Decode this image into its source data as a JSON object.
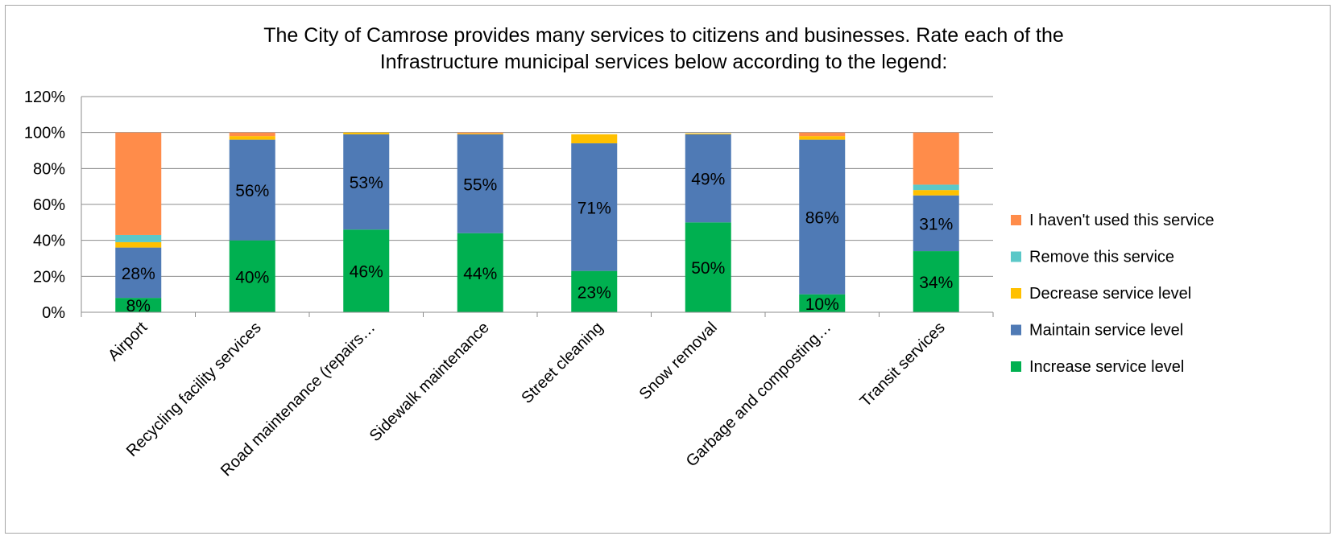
{
  "chart_data": {
    "type": "bar",
    "stacked": true,
    "title": "The City of Camrose provides many services to citizens and businesses.  Rate each of the Infrastructure municipal services below according to the legend:",
    "title_lines": [
      "The City of Camrose provides many services to citizens and businesses.  Rate each of the",
      "Infrastructure municipal services below according to the legend:"
    ],
    "xlabel": "",
    "ylabel": "",
    "ylim": [
      0,
      120
    ],
    "yticks": [
      "0%",
      "20%",
      "40%",
      "60%",
      "80%",
      "100%",
      "120%"
    ],
    "grid": true,
    "legend_position": "right",
    "categories": [
      "Airport",
      "Recycling facility services",
      "Road maintenance (repairs…",
      "Sidewalk maintenance",
      "Street cleaning",
      "Snow removal",
      "Garbage and composting…",
      "Transit services"
    ],
    "series": [
      {
        "name": "Increase service level",
        "color": "#00b050",
        "values": [
          8,
          40,
          46,
          44,
          23,
          50,
          10,
          34
        ],
        "labels": [
          "8%",
          "40%",
          "46%",
          "44%",
          "23%",
          "50%",
          "10%",
          "34%"
        ]
      },
      {
        "name": "Maintain service level",
        "color": "#4f7ab5",
        "values": [
          28,
          56,
          53,
          55,
          71,
          49,
          86,
          31
        ],
        "labels": [
          "28%",
          "56%",
          "53%",
          "55%",
          "71%",
          "49%",
          "86%",
          "31%"
        ]
      },
      {
        "name": "Decrease service level",
        "color": "#ffc000",
        "values": [
          3,
          2,
          1,
          0.5,
          5,
          0.5,
          2,
          3
        ],
        "labels": []
      },
      {
        "name": "Remove this service",
        "color": "#5bc8c8",
        "values": [
          4,
          0,
          0,
          0,
          0,
          0,
          0,
          3
        ],
        "labels": []
      },
      {
        "name": "I haven't used this service",
        "color": "#ff8c4a",
        "values": [
          57,
          2,
          0,
          0.5,
          0,
          0,
          2,
          29
        ],
        "labels": []
      }
    ]
  }
}
